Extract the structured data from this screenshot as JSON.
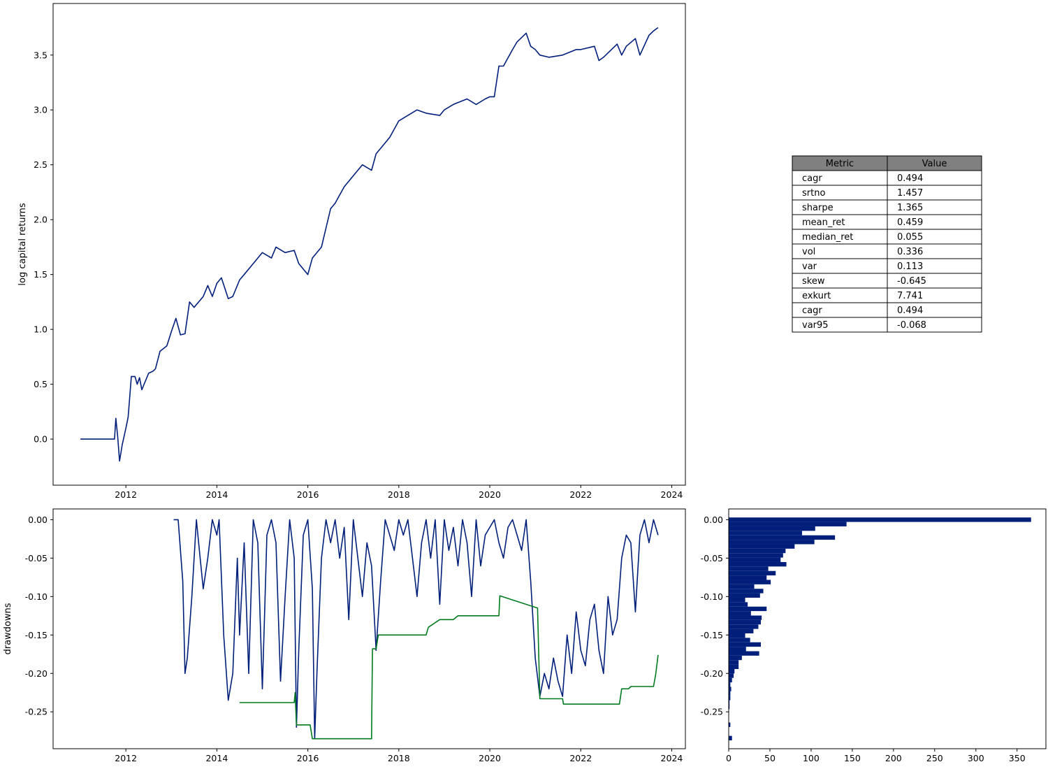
{
  "chart_data": [
    {
      "id": "capital",
      "type": "line",
      "title": "",
      "xlabel": "",
      "ylabel": "log capital returns",
      "xlim": [
        2010.4,
        2024.3
      ],
      "ylim": [
        -0.42,
        3.97
      ],
      "x_ticks": [
        2012,
        2014,
        2016,
        2018,
        2020,
        2022,
        2024
      ],
      "y_ticks": [
        0.0,
        0.5,
        1.0,
        1.5,
        2.0,
        2.5,
        3.0,
        3.5
      ],
      "series": [
        {
          "color": "#001f7a",
          "x": [
            2011.0,
            2011.5,
            2011.75,
            2011.78,
            2011.82,
            2011.86,
            2011.92,
            2012.0,
            2012.05,
            2012.12,
            2012.2,
            2012.25,
            2012.3,
            2012.35,
            2012.5,
            2012.6,
            2012.65,
            2012.75,
            2012.9,
            2013.0,
            2013.1,
            2013.2,
            2013.3,
            2013.4,
            2013.5,
            2013.7,
            2013.8,
            2013.9,
            2014.0,
            2014.1,
            2014.25,
            2014.35,
            2014.5,
            2014.6,
            2014.8,
            2015.0,
            2015.2,
            2015.3,
            2015.5,
            2015.7,
            2015.8,
            2016.0,
            2016.1,
            2016.3,
            2016.5,
            2016.6,
            2016.8,
            2017.0,
            2017.2,
            2017.4,
            2017.5,
            2017.8,
            2018.0,
            2018.2,
            2018.4,
            2018.6,
            2018.9,
            2019.0,
            2019.2,
            2019.5,
            2019.7,
            2019.9,
            2020.0,
            2020.1,
            2020.2,
            2020.3,
            2020.5,
            2020.6,
            2020.8,
            2020.9,
            2021.0,
            2021.1,
            2021.3,
            2021.6,
            2021.9,
            2022.0,
            2022.3,
            2022.4,
            2022.5,
            2022.8,
            2022.9,
            2023.0,
            2023.2,
            2023.3,
            2023.5,
            2023.6,
            2023.7
          ],
          "y": [
            0.0,
            0.0,
            0.0,
            0.19,
            0.02,
            -0.2,
            -0.05,
            0.1,
            0.2,
            0.57,
            0.57,
            0.5,
            0.56,
            0.45,
            0.6,
            0.62,
            0.64,
            0.8,
            0.85,
            0.98,
            1.1,
            0.95,
            0.96,
            1.25,
            1.2,
            1.3,
            1.4,
            1.3,
            1.42,
            1.47,
            1.28,
            1.3,
            1.45,
            1.5,
            1.6,
            1.7,
            1.65,
            1.75,
            1.7,
            1.72,
            1.6,
            1.5,
            1.65,
            1.75,
            2.1,
            2.15,
            2.3,
            2.4,
            2.5,
            2.45,
            2.6,
            2.75,
            2.9,
            2.95,
            3.0,
            2.97,
            2.95,
            3.0,
            3.05,
            3.1,
            3.05,
            3.1,
            3.12,
            3.12,
            3.4,
            3.4,
            3.55,
            3.62,
            3.7,
            3.58,
            3.55,
            3.5,
            3.48,
            3.5,
            3.55,
            3.55,
            3.58,
            3.45,
            3.48,
            3.6,
            3.5,
            3.58,
            3.65,
            3.5,
            3.68,
            3.72,
            3.75
          ]
        }
      ]
    },
    {
      "id": "drawdowns",
      "type": "line",
      "title": "",
      "xlabel": "",
      "ylabel": "drawdowns",
      "xlim": [
        2010.4,
        2024.3
      ],
      "ylim": [
        -0.298,
        0.014
      ],
      "x_ticks": [
        2012,
        2014,
        2016,
        2018,
        2020,
        2022,
        2024
      ],
      "y_ticks": [
        0.0,
        -0.05,
        -0.1,
        -0.15,
        -0.2,
        -0.25
      ],
      "series": [
        {
          "color": "#001f7a",
          "x": [
            2013.05,
            2013.15,
            2013.25,
            2013.3,
            2013.35,
            2013.45,
            2013.55,
            2013.6,
            2013.7,
            2013.8,
            2013.9,
            2014.0,
            2014.05,
            2014.15,
            2014.25,
            2014.35,
            2014.45,
            2014.5,
            2014.6,
            2014.7,
            2014.8,
            2014.9,
            2015.0,
            2015.05,
            2015.1,
            2015.2,
            2015.3,
            2015.4,
            2015.5,
            2015.6,
            2015.7,
            2015.75,
            2015.8,
            2015.9,
            2016.0,
            2016.1,
            2016.15,
            2016.2,
            2016.3,
            2016.4,
            2016.5,
            2016.6,
            2016.7,
            2016.8,
            2016.9,
            2017.0,
            2017.1,
            2017.2,
            2017.3,
            2017.4,
            2017.5,
            2017.6,
            2017.7,
            2017.8,
            2017.9,
            2018.0,
            2018.1,
            2018.2,
            2018.3,
            2018.4,
            2018.5,
            2018.6,
            2018.7,
            2018.8,
            2018.9,
            2019.0,
            2019.1,
            2019.2,
            2019.3,
            2019.4,
            2019.5,
            2019.6,
            2019.7,
            2019.8,
            2019.9,
            2020.0,
            2020.1,
            2020.2,
            2020.3,
            2020.4,
            2020.5,
            2020.6,
            2020.7,
            2020.8,
            2020.9,
            2021.0,
            2021.1,
            2021.2,
            2021.3,
            2021.4,
            2021.5,
            2021.6,
            2021.7,
            2021.8,
            2021.9,
            2022.0,
            2022.1,
            2022.2,
            2022.3,
            2022.4,
            2022.5,
            2022.6,
            2022.7,
            2022.8,
            2022.9,
            2023.0,
            2023.1,
            2023.2,
            2023.3,
            2023.4,
            2023.5,
            2023.6,
            2023.7
          ],
          "y": [
            0.0,
            0.0,
            -0.08,
            -0.2,
            -0.18,
            -0.1,
            0.0,
            -0.03,
            -0.09,
            -0.05,
            0.0,
            -0.02,
            0.0,
            -0.15,
            -0.235,
            -0.2,
            -0.05,
            -0.15,
            -0.03,
            -0.2,
            0.0,
            -0.03,
            -0.22,
            -0.12,
            -0.02,
            0.0,
            -0.03,
            -0.21,
            -0.1,
            0.0,
            -0.05,
            -0.27,
            -0.17,
            -0.02,
            0.0,
            -0.09,
            -0.285,
            -0.2,
            -0.05,
            0.0,
            -0.03,
            0.0,
            -0.05,
            -0.01,
            -0.13,
            0.0,
            -0.05,
            -0.1,
            -0.03,
            -0.06,
            -0.17,
            -0.08,
            0.0,
            -0.02,
            -0.04,
            0.0,
            -0.02,
            0.0,
            -0.05,
            -0.1,
            -0.03,
            0.0,
            -0.05,
            0.0,
            -0.11,
            0.0,
            -0.04,
            -0.01,
            -0.06,
            0.0,
            -0.03,
            -0.1,
            0.0,
            -0.06,
            -0.02,
            -0.01,
            0.0,
            -0.03,
            -0.05,
            -0.01,
            0.0,
            -0.02,
            -0.04,
            0.0,
            -0.08,
            -0.18,
            -0.23,
            -0.2,
            -0.22,
            -0.18,
            -0.21,
            -0.23,
            -0.15,
            -0.2,
            -0.12,
            -0.17,
            -0.19,
            -0.13,
            -0.11,
            -0.17,
            -0.2,
            -0.1,
            -0.15,
            -0.13,
            -0.05,
            -0.02,
            -0.03,
            -0.12,
            -0.02,
            0.0,
            -0.03,
            0.0,
            -0.02
          ]
        },
        {
          "color": "#007a1f",
          "x": [
            2014.5,
            2015.7,
            2015.72,
            2015.75,
            2016.05,
            2016.1,
            2017.4,
            2017.42,
            2017.5,
            2017.55,
            2018.6,
            2018.65,
            2018.9,
            2019.2,
            2019.3,
            2020.2,
            2020.22,
            2021.05,
            2021.1,
            2021.6,
            2021.62,
            2022.85,
            2022.9,
            2023.05,
            2023.1,
            2023.6,
            2023.65,
            2023.7
          ],
          "y": [
            -0.238,
            -0.238,
            -0.225,
            -0.267,
            -0.267,
            -0.285,
            -0.285,
            -0.168,
            -0.168,
            -0.15,
            -0.15,
            -0.14,
            -0.13,
            -0.13,
            -0.125,
            -0.125,
            -0.099,
            -0.115,
            -0.233,
            -0.233,
            -0.24,
            -0.24,
            -0.22,
            -0.22,
            -0.217,
            -0.217,
            -0.2,
            -0.176
          ]
        }
      ]
    },
    {
      "id": "drawdown_hist",
      "type": "bar",
      "orientation": "horizontal",
      "title": "",
      "xlabel": "",
      "ylabel": "",
      "xlim": [
        0,
        385
      ],
      "ylim": [
        -0.298,
        0.014
      ],
      "x_ticks": [
        0,
        50,
        100,
        150,
        200,
        250,
        300,
        350
      ],
      "y_ticks": [
        0.0,
        -0.05,
        -0.1,
        -0.15,
        -0.2,
        -0.25
      ],
      "bin_width": 0.0058,
      "color": "#001f7a",
      "bins": [
        0.0,
        -0.0058,
        -0.0116,
        -0.0174,
        -0.0232,
        -0.029,
        -0.0348,
        -0.0406,
        -0.0464,
        -0.0522,
        -0.058,
        -0.0638,
        -0.0696,
        -0.0754,
        -0.0812,
        -0.087,
        -0.0928,
        -0.0986,
        -0.1044,
        -0.1102,
        -0.116,
        -0.1218,
        -0.1276,
        -0.1334,
        -0.1392,
        -0.145,
        -0.1508,
        -0.1566,
        -0.1624,
        -0.1682,
        -0.174,
        -0.1798,
        -0.1856,
        -0.1914,
        -0.1972,
        -0.203,
        -0.2088,
        -0.2146,
        -0.2204,
        -0.2262,
        -0.232,
        -0.2378,
        -0.2436,
        -0.2552,
        -0.2668,
        -0.2842
      ],
      "counts": [
        367,
        143,
        105,
        89,
        129,
        104,
        80,
        69,
        66,
        63,
        70,
        48,
        57,
        46,
        51,
        31,
        42,
        38,
        20,
        23,
        46,
        27,
        40,
        39,
        36,
        30,
        20,
        26,
        39,
        21,
        37,
        16,
        12,
        12,
        7,
        6,
        4,
        2,
        3,
        2,
        2,
        1,
        1,
        0,
        2,
        4
      ]
    }
  ],
  "metrics_table": {
    "headers": [
      "Metric",
      "Value"
    ],
    "rows": [
      [
        "cagr",
        "0.494"
      ],
      [
        "srtno",
        "1.457"
      ],
      [
        "sharpe",
        "1.365"
      ],
      [
        "mean_ret",
        "0.459"
      ],
      [
        "median_ret",
        "0.055"
      ],
      [
        "vol",
        "0.336"
      ],
      [
        "var",
        "0.113"
      ],
      [
        "skew",
        "-0.645"
      ],
      [
        "exkurt",
        "7.741"
      ],
      [
        "cagr",
        "0.494"
      ],
      [
        "var95",
        "-0.068"
      ]
    ]
  }
}
